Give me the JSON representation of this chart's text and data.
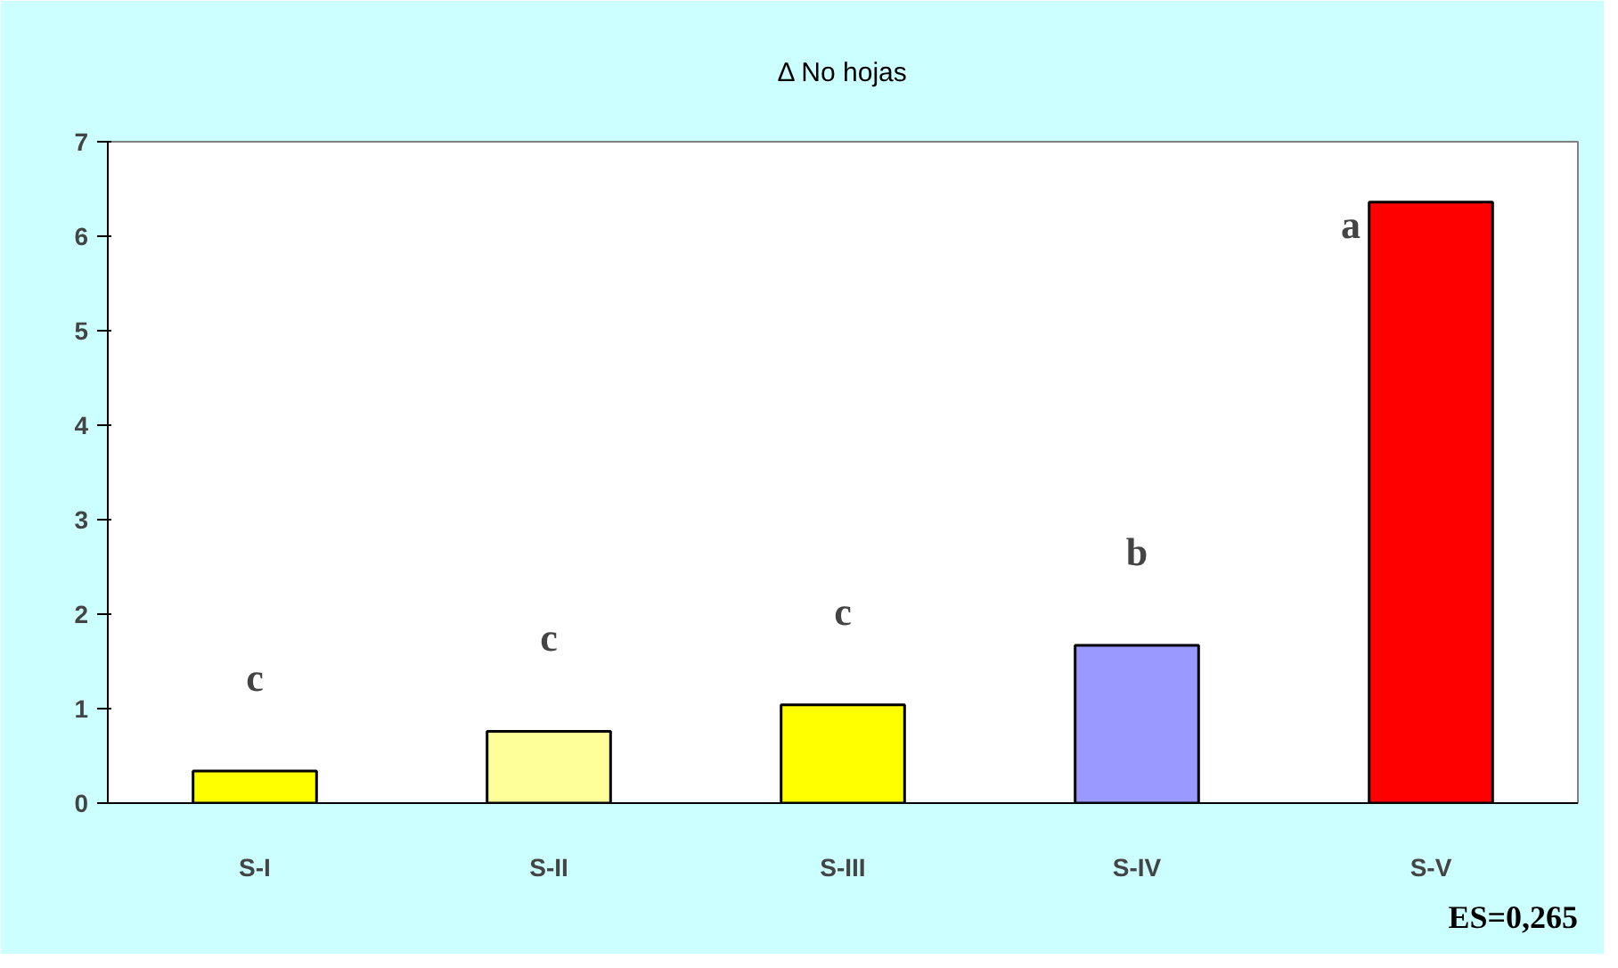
{
  "chart_data": {
    "type": "bar",
    "title": "Δ No hojas",
    "categories": [
      "S-I",
      "S-II",
      "S-III",
      "S-IV",
      "S-V"
    ],
    "values": [
      0.34,
      0.76,
      1.04,
      1.67,
      6.36
    ],
    "colors": [
      "#ffff00",
      "#ffff99",
      "#ffff00",
      "#9999ff",
      "#ff0000"
    ],
    "ylim": [
      0,
      7
    ],
    "yticks": [
      0,
      1,
      2,
      3,
      4,
      5,
      6,
      7
    ],
    "grid": false,
    "annotations": [
      "c",
      "c",
      "c",
      "b",
      "a",
      "ES=0,265"
    ]
  }
}
